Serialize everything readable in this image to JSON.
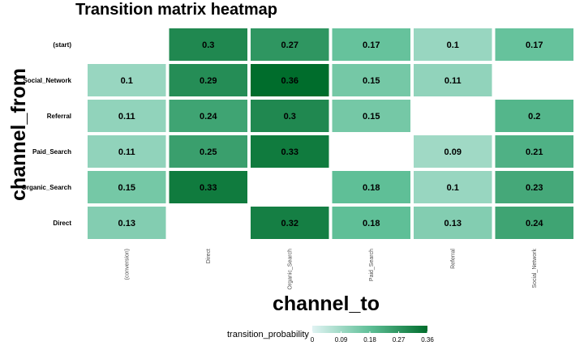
{
  "chart_data": {
    "type": "heatmap",
    "title": "Transition matrix heatmap",
    "xlabel": "channel_to",
    "ylabel": "channel_from",
    "x_categories": [
      "(conversion)",
      "Direct",
      "Organic_Search",
      "Paid_Search",
      "Referral",
      "Social_Network"
    ],
    "y_categories": [
      "(start)",
      "Social_Network",
      "Referral",
      "Paid_Search",
      "Organic_Search",
      "Direct"
    ],
    "values": [
      [
        null,
        0.3,
        0.27,
        0.17,
        0.1,
        0.17
      ],
      [
        0.1,
        0.29,
        0.36,
        0.15,
        0.11,
        null
      ],
      [
        0.11,
        0.24,
        0.3,
        0.15,
        null,
        0.2
      ],
      [
        0.11,
        0.25,
        0.33,
        null,
        0.09,
        0.21
      ],
      [
        0.15,
        0.33,
        null,
        0.18,
        0.1,
        0.23
      ],
      [
        0.13,
        null,
        0.32,
        0.18,
        0.13,
        0.24
      ]
    ],
    "value_range": [
      0,
      0.36
    ],
    "legend": {
      "title": "transition_probability",
      "ticks": [
        "0",
        "0.09",
        "0.18",
        "0.27",
        "0.36"
      ],
      "tick_values": [
        0,
        0.09,
        0.18,
        0.27,
        0.36
      ],
      "placement": "bottom"
    },
    "colors": {
      "low": "#e0f3f3",
      "mid": "#5fbf97",
      "high": "#006d2c"
    }
  }
}
